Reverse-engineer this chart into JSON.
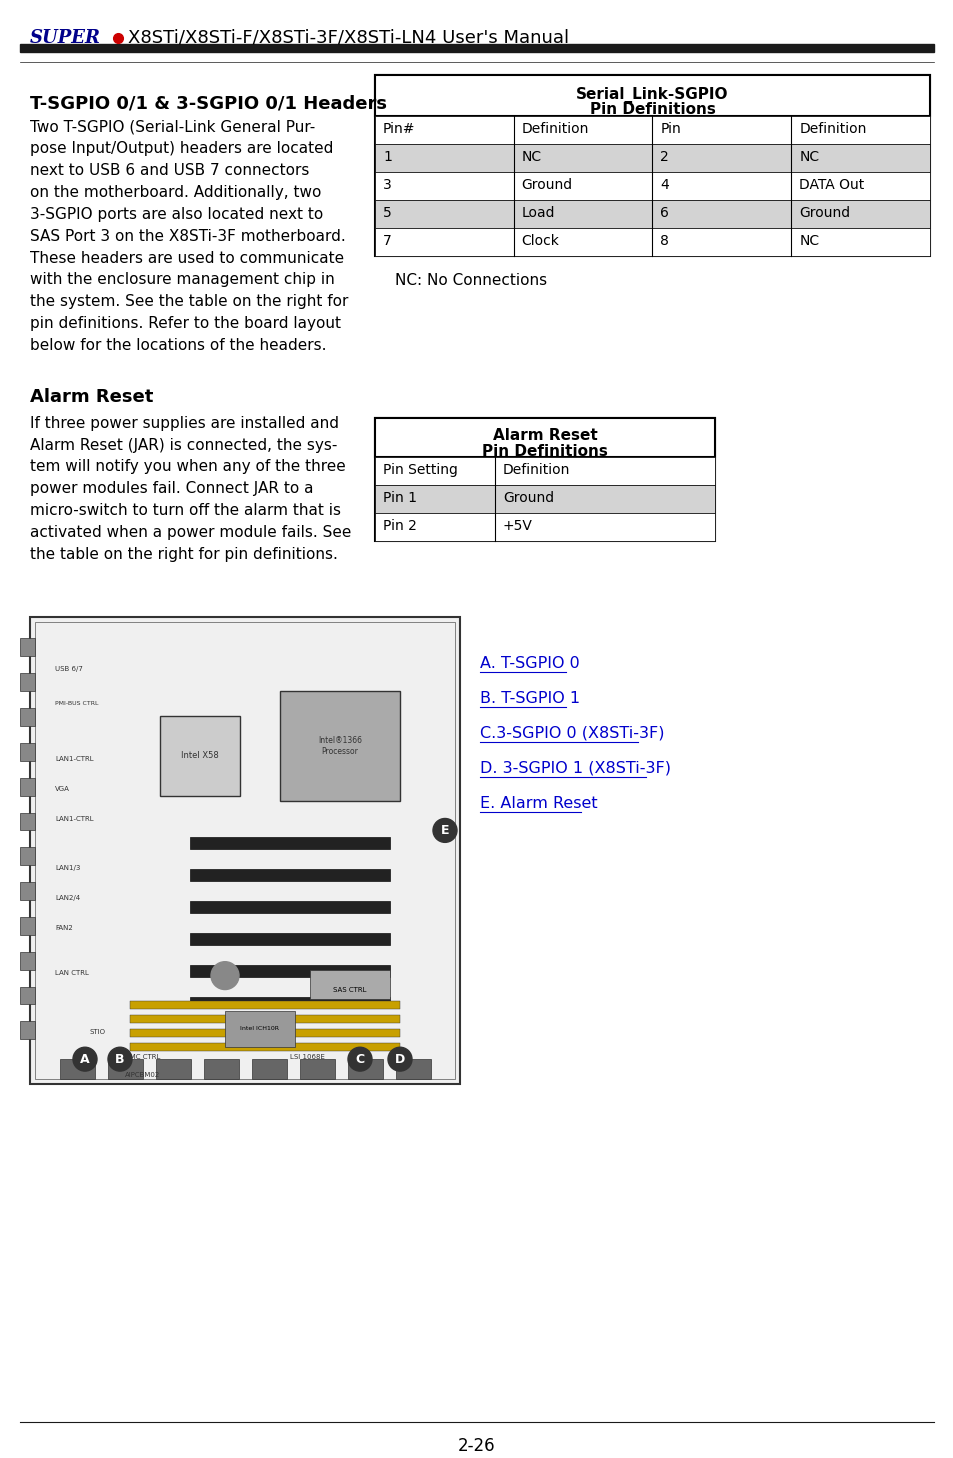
{
  "page_title_super": "SUPER",
  "page_title_rest": "X8STi/X8STi-F/X8STi-3F/X8STi-LN4 User's Manual",
  "page_number": "2-26",
  "section1_title": "T-SGPIO 0/1 & 3-SGPIO 0/1 Headers",
  "section1_body": [
    "Two T-SGPIO (Serial-Link General Pur-",
    "pose Input/Output) headers are located",
    "next to USB 6 and USB 7 connectors",
    "on the motherboard. Additionally, two",
    "3-SGPIO ports are also located next to",
    "SAS Port 3 on the X8STi-3F motherboard.",
    "These headers are used to communicate",
    "with the enclosure management chip in",
    "the system. See the table on the right for",
    "pin definitions. Refer to the board layout",
    "below for the locations of the headers."
  ],
  "table1_title1": "Serial_Link-SGPIO",
  "table1_title2": "Pin Definitions",
  "table1_headers": [
    "Pin#",
    "Definition",
    "Pin",
    "Definition"
  ],
  "table1_rows": [
    [
      "1",
      "NC",
      "2",
      "NC"
    ],
    [
      "3",
      "Ground",
      "4",
      "DATA Out"
    ],
    [
      "5",
      "Load",
      "6",
      "Ground"
    ],
    [
      "7",
      "Clock",
      "8",
      "NC"
    ]
  ],
  "table1_note": "NC: No Connections",
  "section2_title": "Alarm Reset",
  "section2_body": [
    "If three power supplies are installed and",
    "Alarm Reset (JAR) is connected, the sys-",
    "tem will notify you when any of the three",
    "power modules fail. Connect JAR to a",
    "micro-switch to turn off the alarm that is",
    "activated when a power module fails. See",
    "the table on the right for pin definitions."
  ],
  "table2_title1": "Alarm Reset",
  "table2_title2": "Pin Definitions",
  "table2_headers": [
    "Pin Setting",
    "Definition"
  ],
  "table2_rows": [
    [
      "Pin 1",
      "Ground"
    ],
    [
      "Pin 2",
      "+5V"
    ]
  ],
  "legend_items": [
    "A. T-SGPIO 0",
    "B. T-SGPIO 1",
    "C.3-SGPIO 0 (X8STi-3F)",
    "D. 3-SGPIO 1 (X8STi-3F)",
    "E. Alarm Reset"
  ],
  "color_row_alt": "#d3d3d3",
  "color_row_normal": "#ffffff",
  "color_table_border": "#000000",
  "color_super_blue": "#00008B",
  "color_super_red": "#CC0000",
  "color_text": "#000000",
  "color_bg": "#ffffff",
  "color_link": "#0000CC"
}
